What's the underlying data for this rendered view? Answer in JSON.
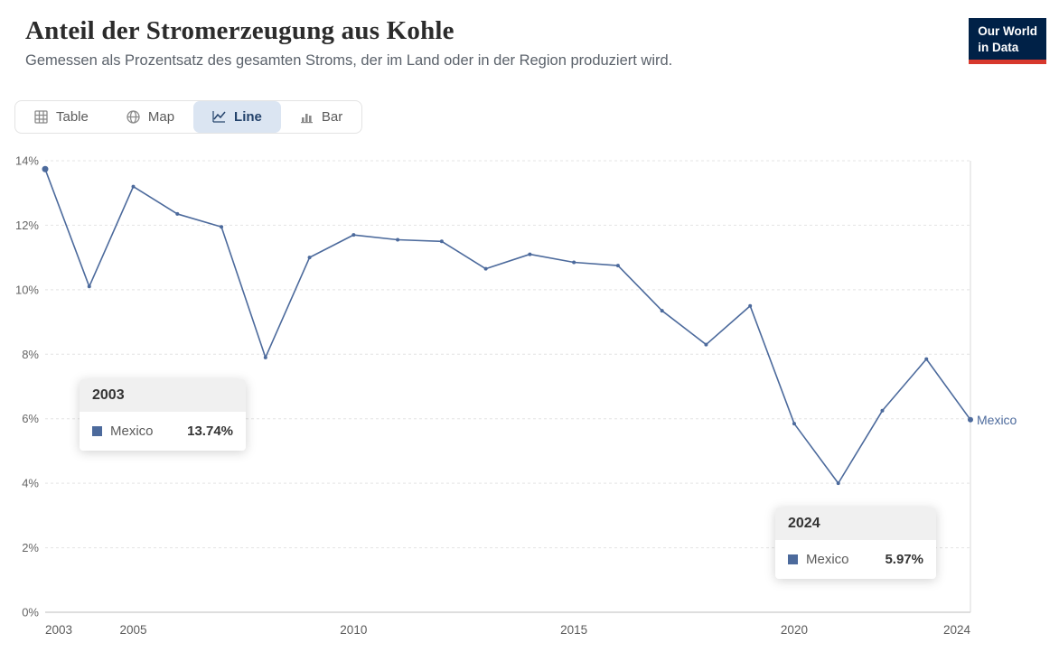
{
  "header": {
    "title": "Anteil der Stromerzeugung aus Kohle",
    "subtitle": "Gemessen als Prozentsatz des gesamten Stroms, der im Land oder in der Region produziert wird.",
    "logo_line1": "Our World",
    "logo_line2": "in Data"
  },
  "tabs": {
    "items": [
      {
        "label": "Table",
        "icon": "table-icon",
        "selected": false
      },
      {
        "label": "Map",
        "icon": "globe-icon",
        "selected": false
      },
      {
        "label": "Line",
        "icon": "line-chart-icon",
        "selected": true
      },
      {
        "label": "Bar",
        "icon": "bar-chart-icon",
        "selected": false
      }
    ]
  },
  "tooltips": [
    {
      "year": "2003",
      "series": "Mexico",
      "value": "13.74%"
    },
    {
      "year": "2024",
      "series": "Mexico",
      "value": "5.97%"
    }
  ],
  "chart_data": {
    "type": "line",
    "title": "Anteil der Stromerzeugung aus Kohle",
    "xlabel": "",
    "ylabel": "",
    "xlim": [
      2003,
      2024
    ],
    "ylim": [
      0,
      14
    ],
    "x_ticks": [
      2003,
      2005,
      2010,
      2015,
      2020,
      2024
    ],
    "y_ticks": [
      0,
      2,
      4,
      6,
      8,
      10,
      12,
      14
    ],
    "y_tick_suffix": "%",
    "grid": true,
    "legend_position": "end-of-line",
    "end_label": "Mexico",
    "hover_year": 2024,
    "series": [
      {
        "name": "Mexico",
        "color": "#4C6A9C",
        "x": [
          2003,
          2004,
          2005,
          2006,
          2007,
          2008,
          2009,
          2010,
          2011,
          2012,
          2013,
          2014,
          2015,
          2016,
          2017,
          2018,
          2019,
          2020,
          2021,
          2022,
          2023,
          2024
        ],
        "values": [
          13.74,
          10.1,
          13.2,
          12.35,
          11.95,
          7.9,
          11.0,
          11.7,
          11.55,
          11.5,
          10.65,
          11.1,
          10.85,
          10.75,
          9.35,
          8.3,
          9.5,
          5.85,
          4.0,
          6.25,
          7.85,
          5.97
        ]
      }
    ]
  },
  "colors": {
    "line": "#4C6A9C",
    "selected_tab_bg": "#dbe5f2",
    "logo_bg": "#002147",
    "logo_accent": "#d7382d"
  }
}
